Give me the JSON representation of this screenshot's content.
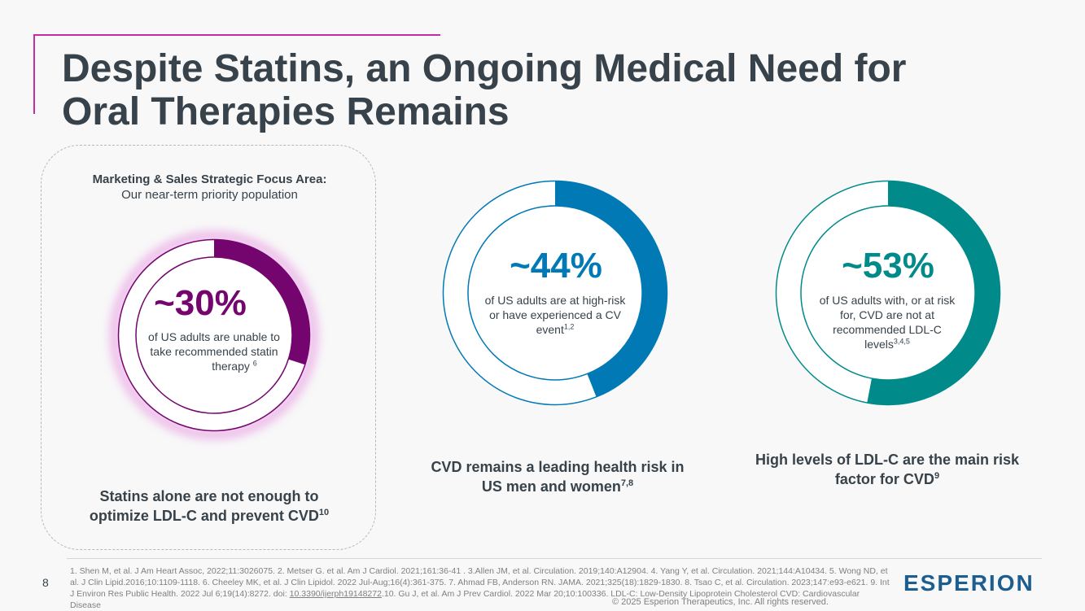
{
  "slide": {
    "title_line1": "Despite Statins, an Ongoing Medical Need for",
    "title_line2": "Oral Therapies Remains",
    "page_number": "8"
  },
  "focus_area": {
    "heading": "Marketing & Sales Strategic Focus Area:",
    "subheading": "Our near-term priority population"
  },
  "stats": [
    {
      "value": "~30%",
      "desc_lines": [
        "of US adults are unable to",
        "take recommended statin"
      ],
      "desc_last": "therapy",
      "superscript": "6",
      "fraction": 0.3,
      "color": "#75056e",
      "caption_line1": "Statins alone are not enough to",
      "caption_line2": "optimize LDL-C and prevent CVD",
      "caption_sup": "10"
    },
    {
      "value": "~44%",
      "desc_lines": [
        "of US adults are at high-risk",
        "or have experienced a CV"
      ],
      "desc_last": "event",
      "superscript": "1,2",
      "fraction": 0.44,
      "color": "#0079b5",
      "caption_line1": "CVD remains a leading health risk in",
      "caption_line2": "US men and women",
      "caption_sup": "7,8"
    },
    {
      "value": "~53%",
      "desc_lines": [
        "of US adults with, or at risk",
        "for, CVD are not at",
        "recommended LDL-C"
      ],
      "desc_last": "levels",
      "superscript": "3,4,5",
      "fraction": 0.53,
      "color": "#008a8a",
      "caption_line1": "High levels of LDL-C are the main risk",
      "caption_line2": "factor for CVD",
      "caption_sup": "9"
    }
  ],
  "footer": {
    "refs_part1": "1. Shen M, et al. J Am Heart Assoc, 2022;11:3026075. 2. Metser G. et al. Am J Cardiol. 2021;161:36-41 . 3.Allen JM, et al. Circulation. 2019;140:A12904. 4. Yang Y, et al. Circulation. 2021;144:A10434. 5. Wong ND, et al. J Clin Lipid.2016;10:1109-1118. 6. Cheeley MK, et al. J Clin Lipidol. 2022 Jul-Aug;16(4):361-375. 7. Ahmad FB, Anderson RN. JAMA. 2021;325(18):1829-1830. 8. Tsao C, et al. Circulation. 2023;147:e93-e621. 9. Int J Environ Res Public Health. 2022 Jul 6;19(14):8272. doi: ",
    "refs_link": "10.3390/ijerph19148272",
    "refs_part2": ".10. Gu J, et al. Am J Prev Cardiol. 2022 Mar 20;10:100336. LDL-C: Low-Density Lipoprotein Cholesterol  CVD: Cardiovascular Disease",
    "copyright": "© 2025 Esperion Therapeutics, Inc. All rights reserved.",
    "logo": "ESPERION"
  },
  "colors": {
    "title": "#37424a",
    "accent": "#c42ca2",
    "logo": "#1c5e8f"
  }
}
